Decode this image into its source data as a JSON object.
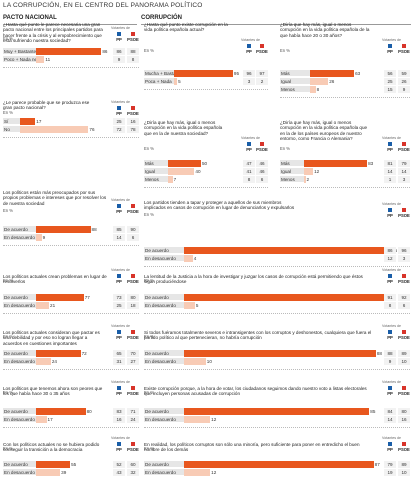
{
  "page_title": "LA CORRUPCIÓN, EN EL CENTRO DEL PANORAMA POLÍTICO",
  "colors": {
    "high": "#e8571e",
    "low": "#f8cbb5",
    "pp": "#1a5ea8",
    "psoe": "#d8342a"
  },
  "labels": {
    "votantes": "Votantes de",
    "pp": "PP",
    "psoe": "PSOE",
    "pct": "En %"
  },
  "chart_data": [
    {
      "type": "bar",
      "column": "PACTO NACIONAL",
      "title": "¿Hasta qué punto le parece necesaria una gran pacto nacional entre los principales partidos para hacer frente a la crisis y al empobrecimiento que está sufriendo nuestra sociedad?",
      "categories": [
        "Muy + Bastante necesario",
        "Poco + Nada necesario"
      ],
      "values": [
        86,
        11
      ],
      "pp": [
        86,
        9
      ],
      "psoe": [
        88,
        8
      ]
    },
    {
      "type": "bar",
      "column": "PACTO NACIONAL",
      "title": "¿Le parece probable que se produzca ese gran pacto nacional?",
      "categories": [
        "Sí",
        "No"
      ],
      "values": [
        17,
        76
      ],
      "pp": [
        25,
        72
      ],
      "psoe": [
        16,
        78
      ]
    },
    {
      "type": "bar",
      "column": "PACTO NACIONAL",
      "title": "Los políticos están más preocupados por sus propios problemas e intereses que por resolver los de nuestra sociedad",
      "categories": [
        "De acuerdo",
        "En desacuerdo"
      ],
      "values": [
        88,
        9
      ],
      "pp": [
        85,
        14
      ],
      "psoe": [
        90,
        6
      ]
    },
    {
      "type": "bar",
      "column": "PACTO NACIONAL",
      "title": "Los políticos actuales crean problemas en lugar de resolverlos",
      "categories": [
        "De acuerdo",
        "En desacuerdo"
      ],
      "values": [
        77,
        21
      ],
      "pp": [
        73,
        25
      ],
      "psoe": [
        80,
        18
      ]
    },
    {
      "type": "bar",
      "column": "PACTO NACIONAL",
      "title": "Los políticos actuales consideran que pactar es una debilidad y por eso no logran llegar a acuerdos en cuestiones importantes",
      "categories": [
        "De acuerdo",
        "En desacuerdo"
      ],
      "values": [
        72,
        24
      ],
      "pp": [
        65,
        31
      ],
      "psoe": [
        70,
        27
      ]
    },
    {
      "type": "bar",
      "column": "PACTO NACIONAL",
      "title": "Los políticos que tenemos ahora son peores que los que había hace 30 o 35 años",
      "categories": [
        "De acuerdo",
        "En desacuerdo"
      ],
      "values": [
        80,
        17
      ],
      "pp": [
        83,
        16
      ],
      "psoe": [
        71,
        24
      ]
    },
    {
      "type": "bar",
      "column": "PACTO NACIONAL",
      "title": "Con los políticos actuales no se hubiera podido conseguir la transición a la democracia",
      "categories": [
        "De acuerdo",
        "En desacuerdo"
      ],
      "values": [
        55,
        39
      ],
      "pp": [
        52,
        43
      ],
      "psoe": [
        60,
        32
      ]
    },
    {
      "type": "bar",
      "column": "CORRUPCIÓN",
      "title": "¿Hasta qué punto existe corrupción en la vida política española actual?",
      "categories": [
        "Mucha + Bastante",
        "Poca + Nada"
      ],
      "values": [
        95,
        5
      ],
      "pp": [
        96,
        3
      ],
      "psoe": [
        97,
        2
      ]
    },
    {
      "type": "bar",
      "column": "CORRUPCIÓN",
      "title": "¿Diría que hay más, igual o menos corrupción en la vida política española de la que había hace 20 o 30 años?",
      "categories": [
        "Más",
        "Igual",
        "Menos"
      ],
      "values": [
        63,
        26,
        8
      ],
      "pp": [
        56,
        25,
        15
      ],
      "psoe": [
        59,
        26,
        9
      ]
    },
    {
      "type": "bar",
      "column": "CORRUPCIÓN",
      "title": "¿Diría que hay más, igual o menos corrupción en la vida política española que en la de nuestra sociedad?",
      "categories": [
        "Más",
        "Igual",
        "Menos"
      ],
      "values": [
        50,
        40,
        7
      ],
      "pp": [
        47,
        41,
        8
      ],
      "psoe": [
        46,
        46,
        6
      ]
    },
    {
      "type": "bar",
      "column": "CORRUPCIÓN",
      "title": "¿Diría que hay más, igual o menos corrupción en la vida política española que en la de los países europeos de nuestro entorno, como Francia o Alemania?",
      "categories": [
        "Más",
        "Igual",
        "Menos"
      ],
      "values": [
        83,
        12,
        2
      ],
      "pp": [
        81,
        14,
        1
      ],
      "psoe": [
        79,
        14,
        3
      ]
    },
    {
      "type": "bar",
      "column": "CORRUPCIÓN",
      "title": "Los partidos tienden a tapar y proteger a aquellos de sus miembros implicados en casos de corrupción en lugar de denunciarlos y expulsarlos",
      "categories": [
        "De acuerdo",
        "En desacuerdo"
      ],
      "values": [
        95,
        4
      ],
      "pp": [
        86,
        12
      ],
      "psoe": [
        96,
        3
      ]
    },
    {
      "type": "bar",
      "column": "CORRUPCIÓN",
      "title": "La lentitud de la Justicia a la hora de investigar y juzgar los casos de corrupción está permitiendo que éstos sigan produciéndose",
      "categories": [
        "De acuerdo",
        "En desacuerdo"
      ],
      "values": [
        93,
        5
      ],
      "pp": [
        91,
        8
      ],
      "psoe": [
        92,
        6
      ]
    },
    {
      "type": "bar",
      "column": "CORRUPCIÓN",
      "title": "Si todos fuéramos totalmente severos e intransigentes con los corruptos y deshonestos, cualquiera que fuera el partido político al que pertenecieran, no habría corrupción",
      "categories": [
        "De acuerdo",
        "En desacuerdo"
      ],
      "values": [
        88,
        10
      ],
      "pp": [
        88,
        9
      ],
      "psoe": [
        89,
        10
      ]
    },
    {
      "type": "bar",
      "column": "CORRUPCIÓN",
      "title": "Existe corrupción porque, a la hora de votar, los ciudadanos seguimos dando nuestro voto a listas electorales que incluyen personas acusadas de corrupción",
      "categories": [
        "De acuerdo",
        "En desacuerdo"
      ],
      "values": [
        85,
        12
      ],
      "pp": [
        84,
        14
      ],
      "psoe": [
        80,
        16
      ]
    },
    {
      "type": "bar",
      "column": "CORRUPCIÓN",
      "title": "En realidad, los políticos corruptos son sólo una minoría, pero suficiente para poner en entredicho el buen nombre de los demás",
      "categories": [
        "De acuerdo",
        "En desacuerdo"
      ],
      "values": [
        87,
        12
      ],
      "pp": [
        79,
        19
      ],
      "psoe": [
        89,
        10
      ]
    }
  ]
}
